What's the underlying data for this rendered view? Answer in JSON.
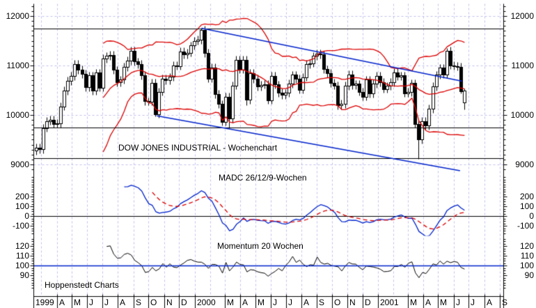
{
  "watermark": "Hoppenstedt Charts",
  "titles": {
    "price": "DOW JONES INDUSTRIAL - Wochenchart",
    "macd": "MADC 26/12/9-Wochen",
    "momentum": "Momentum 20 Wochen"
  },
  "colors": {
    "background": "#ffffff",
    "grid": "#c0c0ee",
    "axis": "#000000",
    "black_line": "#000000",
    "band_red": "#dd0000",
    "trend_blue": "#0022cc",
    "macd_line_blue": "#0022cc",
    "macd_signal_red": "#dd0000",
    "momentum_black": "#000000",
    "momentum_base_blue": "#0022cc",
    "candle_up_fill": "#ffffff",
    "candle_down_fill": "#000000",
    "candle_outline": "#000000"
  },
  "chart_data": {
    "type": "candlestick",
    "title": "DOW JONES INDUSTRIAL - Wochenchart",
    "frequency": "weekly",
    "start_label": "1999",
    "grid": "dashed-monthly",
    "price_panel": {
      "yticks": [
        9000,
        10000,
        11000,
        12000
      ],
      "ylim": [
        8850,
        12250
      ],
      "horizontal_lines": [
        11750,
        9750,
        9120
      ],
      "trendlines": [
        {
          "from_day": 329,
          "from_price": 11760,
          "to_day": 849,
          "to_price": 10690
        },
        {
          "from_day": 240,
          "from_price": 9990,
          "to_day": 845,
          "to_price": 8880
        }
      ],
      "bollinger": {
        "period": 20,
        "stddev": 2
      },
      "candles_ohlc": [
        [
          9280,
          9420,
          9200,
          9340
        ],
        [
          9340,
          9420,
          9226,
          9306
        ],
        [
          9306,
          9816,
          9226,
          9736
        ],
        [
          9736,
          9956,
          9656,
          9876
        ],
        [
          9876,
          9983,
          9796,
          9903
        ],
        [
          9903,
          9983,
          9742,
          9822
        ],
        [
          9822,
          9913,
          9742,
          9833
        ],
        [
          9833,
          10254,
          9753,
          10174
        ],
        [
          10174,
          10574,
          10094,
          10494
        ],
        [
          10494,
          10770,
          10414,
          10690
        ],
        [
          10690,
          10869,
          10610,
          10789
        ],
        [
          10789,
          11111,
          10709,
          11031
        ],
        [
          11031,
          11111,
          10833,
          10913
        ],
        [
          10913,
          10993,
          10749,
          10829
        ],
        [
          10829,
          10909,
          10480,
          10560
        ],
        [
          10560,
          10880,
          10480,
          10800
        ],
        [
          10800,
          10880,
          10410,
          10490
        ],
        [
          10490,
          10935,
          10410,
          10855
        ],
        [
          10855,
          10935,
          10472,
          10552
        ],
        [
          10552,
          11220,
          10472,
          11140
        ],
        [
          11140,
          11274,
          11060,
          11194
        ],
        [
          11194,
          11290,
          11114,
          11210
        ],
        [
          11210,
          11290,
          10831,
          10911
        ],
        [
          10911,
          10991,
          10575,
          10655
        ],
        [
          10655,
          10794,
          10575,
          10714
        ],
        [
          10714,
          11054,
          10634,
          10974
        ],
        [
          10974,
          11180,
          10894,
          11100
        ],
        [
          11100,
          11379,
          11020,
          11299
        ],
        [
          11299,
          11379,
          10999,
          11079
        ],
        [
          11079,
          11159,
          10948,
          11028
        ],
        [
          11028,
          11108,
          10723,
          10803
        ],
        [
          10803,
          10883,
          10199,
          10279
        ],
        [
          10279,
          10359,
          10193,
          10273
        ],
        [
          10273,
          10730,
          10193,
          10650
        ],
        [
          10650,
          10730,
          9976,
          10020
        ],
        [
          10020,
          10550,
          9940,
          10470
        ],
        [
          10470,
          10810,
          10390,
          10730
        ],
        [
          10730,
          10810,
          10624,
          10704
        ],
        [
          10704,
          10850,
          10624,
          10770
        ],
        [
          10770,
          11084,
          10690,
          11004
        ],
        [
          11004,
          11084,
          10909,
          10989
        ],
        [
          10989,
          11366,
          10909,
          11286
        ],
        [
          11286,
          11366,
          11145,
          11225
        ],
        [
          11225,
          11337,
          11145,
          11257
        ],
        [
          11257,
          11485,
          11177,
          11405
        ],
        [
          11405,
          11577,
          11325,
          11497
        ],
        [
          11497,
          11603,
          11417,
          11523
        ],
        [
          11523,
          11750,
          11443,
          11723
        ],
        [
          11723,
          11803,
          11172,
          11252
        ],
        [
          11252,
          11332,
          10659,
          10739
        ],
        [
          10739,
          11043,
          10659,
          10963
        ],
        [
          10963,
          11043,
          10345,
          10425
        ],
        [
          10425,
          10505,
          10140,
          10220
        ],
        [
          10220,
          10300,
          9782,
          9862
        ],
        [
          9862,
          10447,
          9782,
          10367
        ],
        [
          10367,
          10447,
          9730,
          9929
        ],
        [
          9929,
          10675,
          9849,
          10595
        ],
        [
          10595,
          11193,
          10515,
          11113
        ],
        [
          11113,
          11193,
          10842,
          10922
        ],
        [
          10922,
          11191,
          10842,
          11111
        ],
        [
          11111,
          11191,
          10201,
          10306
        ],
        [
          10306,
          10924,
          10226,
          10844
        ],
        [
          10844,
          10924,
          10654,
          10734
        ],
        [
          10734,
          10814,
          10497,
          10577
        ],
        [
          10577,
          10689,
          10497,
          10609
        ],
        [
          10609,
          10706,
          10529,
          10626
        ],
        [
          10626,
          10706,
          10220,
          10300
        ],
        [
          10300,
          10874,
          10220,
          10794
        ],
        [
          10794,
          10874,
          10534,
          10614
        ],
        [
          10614,
          10694,
          10370,
          10450
        ],
        [
          10450,
          10530,
          10325,
          10405
        ],
        [
          10405,
          10528,
          10325,
          10448
        ],
        [
          10448,
          10716,
          10368,
          10636
        ],
        [
          10636,
          10893,
          10556,
          10813
        ],
        [
          10813,
          10893,
          10653,
          10733
        ],
        [
          10733,
          10813,
          10431,
          10511
        ],
        [
          10511,
          10847,
          10431,
          10767
        ],
        [
          10767,
          11108,
          10687,
          11028
        ],
        [
          11028,
          11127,
          10948,
          11047
        ],
        [
          11047,
          11273,
          10967,
          11193
        ],
        [
          11193,
          11319,
          11113,
          11239
        ],
        [
          11239,
          11319,
          11141,
          11221
        ],
        [
          11221,
          11301,
          10847,
          10927
        ],
        [
          10927,
          11007,
          10767,
          10847
        ],
        [
          10847,
          10927,
          10570,
          10650
        ],
        [
          10650,
          10730,
          10517,
          10597
        ],
        [
          10597,
          10677,
          10112,
          10192
        ],
        [
          10192,
          10306,
          10112,
          10226
        ],
        [
          10226,
          10670,
          10146,
          10590
        ],
        [
          10590,
          10897,
          10510,
          10817
        ],
        [
          10817,
          10897,
          10522,
          10602
        ],
        [
          10602,
          10710,
          10522,
          10630
        ],
        [
          10630,
          10710,
          10390,
          10470
        ],
        [
          10470,
          10550,
          10293,
          10373
        ],
        [
          10373,
          10792,
          10293,
          10712
        ],
        [
          10712,
          10792,
          10354,
          10434
        ],
        [
          10434,
          10715,
          10354,
          10635
        ],
        [
          10635,
          10867,
          10555,
          10787
        ],
        [
          10787,
          10867,
          10582,
          10662
        ],
        [
          10662,
          10742,
          10445,
          10525
        ],
        [
          10525,
          10668,
          10445,
          10588
        ],
        [
          10588,
          10740,
          10508,
          10660
        ],
        [
          10660,
          10944,
          10580,
          10864
        ],
        [
          10864,
          10944,
          10701,
          10781
        ],
        [
          10781,
          10879,
          10701,
          10799
        ],
        [
          10799,
          10879,
          10362,
          10442
        ],
        [
          10442,
          10546,
          10362,
          10466
        ],
        [
          10466,
          10725,
          10386,
          10645
        ],
        [
          10645,
          10725,
          9750,
          9823
        ],
        [
          9823,
          9903,
          9106,
          9504
        ],
        [
          9504,
          9959,
          9424,
          9879
        ],
        [
          9879,
          9959,
          9711,
          9791
        ],
        [
          9791,
          10206,
          9711,
          10126
        ],
        [
          10126,
          10660,
          10046,
          10580
        ],
        [
          10580,
          10890,
          10500,
          10810
        ],
        [
          10810,
          11032,
          10730,
          10952
        ],
        [
          10952,
          11032,
          10741,
          10821
        ],
        [
          10821,
          11350,
          10741,
          11301
        ],
        [
          11301,
          11381,
          10925,
          11005
        ],
        [
          11005,
          11085,
          10910,
          10990
        ],
        [
          10990,
          11070,
          10897,
          10977
        ],
        [
          10977,
          11057,
          10430,
          10480
        ],
        [
          10260,
          10530,
          10110,
          10500
        ]
      ]
    },
    "macd_panel": {
      "label": "MADC 26/12/9-Wochen",
      "params": {
        "slow": 26,
        "fast": 12,
        "signal": 9
      },
      "yticks": [
        -100,
        0,
        100,
        200
      ],
      "zero_line": 0
    },
    "momentum_panel": {
      "label": "Momentum 20 Wochen",
      "params": {
        "period": 20
      },
      "yticks": [
        90,
        100,
        110,
        120
      ],
      "baseline": 100
    },
    "x_axis": {
      "cells": [
        [
          "1999",
          0
        ],
        [
          "A",
          41
        ],
        [
          "M",
          71
        ],
        [
          "J",
          102
        ],
        [
          "J",
          132
        ],
        [
          "A",
          163
        ],
        [
          "S",
          194
        ],
        [
          "O",
          224
        ],
        [
          "N",
          255
        ],
        [
          "D",
          285
        ],
        [
          "2000",
          316
        ],
        [
          "M",
          376
        ],
        [
          "A",
          407
        ],
        [
          "M",
          437
        ],
        [
          "J",
          468
        ],
        [
          "J",
          498
        ],
        [
          "A",
          529
        ],
        [
          "S",
          560
        ],
        [
          "O",
          590
        ],
        [
          "N",
          621
        ],
        [
          "D",
          651
        ],
        [
          "2001",
          682
        ],
        [
          "M",
          741
        ],
        [
          "A",
          772
        ],
        [
          "M",
          802
        ],
        [
          "J",
          833
        ],
        [
          "J",
          863
        ],
        [
          "A",
          894
        ],
        [
          "S",
          925
        ]
      ],
      "grid_days": [
        10,
        41,
        71,
        102,
        132,
        163,
        194,
        224,
        255,
        285,
        316,
        347,
        376,
        407,
        437,
        468,
        498,
        529,
        560,
        590,
        621,
        651,
        682,
        713,
        741,
        772,
        802,
        833,
        863,
        894,
        925
      ],
      "end_day": 932
    }
  }
}
